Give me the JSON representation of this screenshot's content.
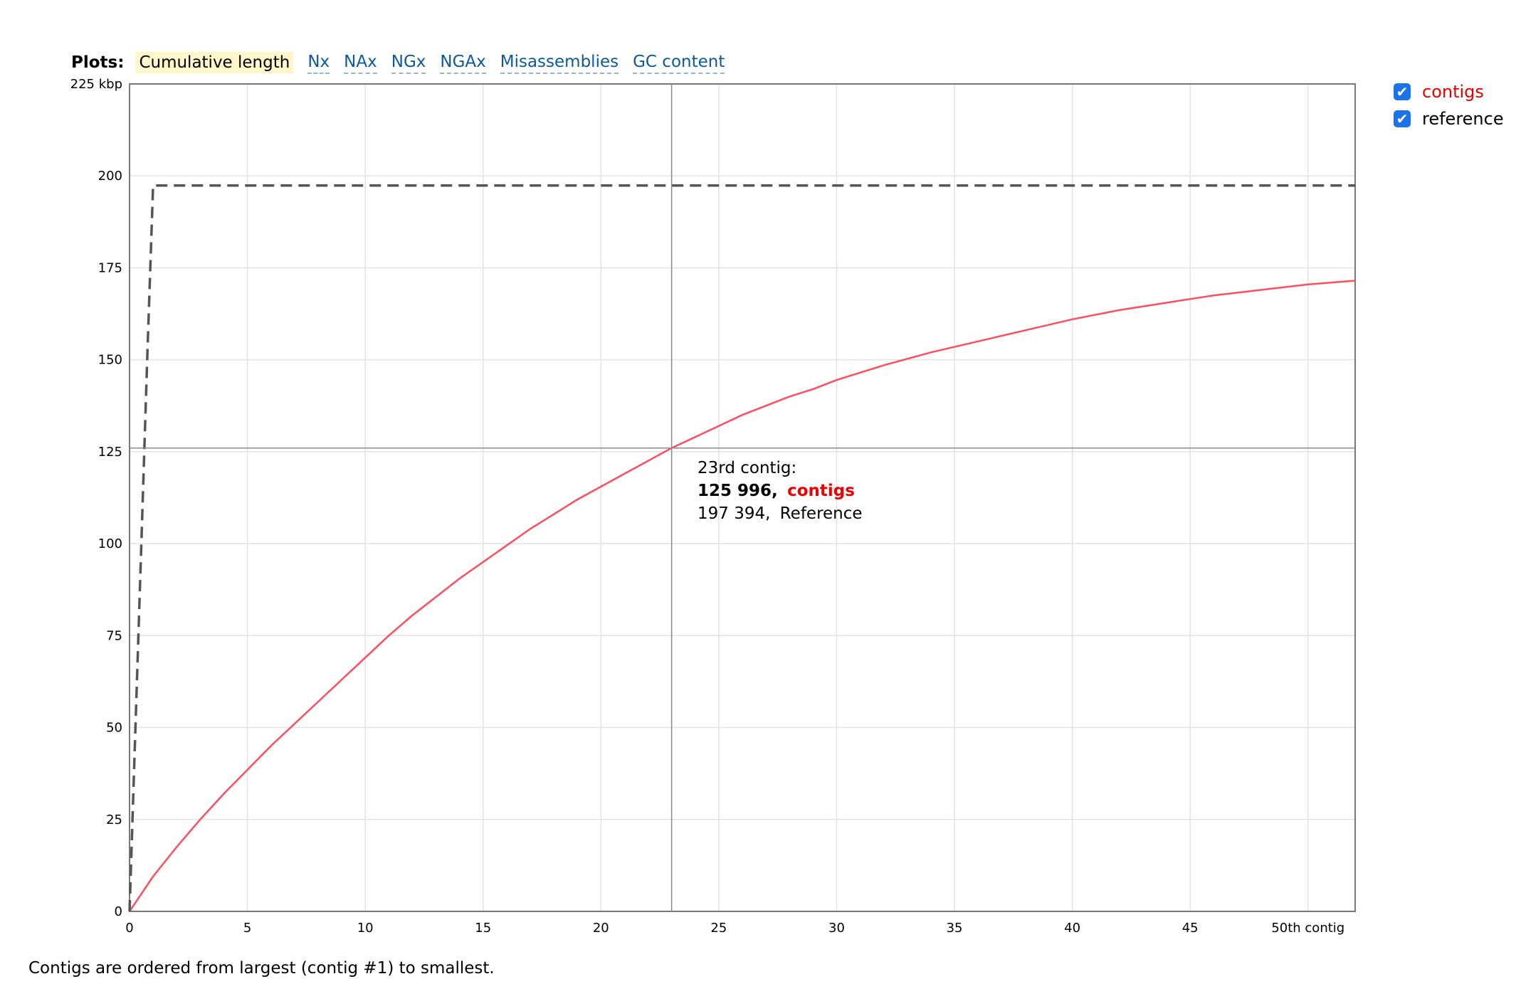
{
  "tabs": {
    "label": "Plots:",
    "items": [
      "Cumulative length",
      "Nx",
      "NAx",
      "NGx",
      "NGAx",
      "Misassemblies",
      "GC content"
    ],
    "active": "Cumulative length"
  },
  "legend": [
    {
      "name": "contigs",
      "color": "#ee0000",
      "checked": true
    },
    {
      "name": "reference",
      "color": "#000000",
      "checked": true
    }
  ],
  "footnote": "Contigs are ordered from largest (contig #1) to smallest.",
  "tooltip": {
    "title": "23rd contig:",
    "contigs_value": "125 996,",
    "contigs_label": "contigs",
    "reference_value": "197 394,",
    "reference_label": "Reference"
  },
  "chart_data": {
    "type": "line",
    "xlim": [
      0,
      52
    ],
    "ylim": [
      0,
      225
    ],
    "x_ticks": [
      0,
      5,
      10,
      15,
      20,
      25,
      30,
      35,
      40,
      45,
      50
    ],
    "x_tick_labels": [
      "0",
      "5",
      "10",
      "15",
      "20",
      "25",
      "30",
      "35",
      "40",
      "45",
      "50th contig"
    ],
    "y_ticks": [
      0,
      25,
      50,
      75,
      100,
      125,
      150,
      175,
      200,
      225
    ],
    "y_tick_labels": [
      "0",
      "25",
      "50",
      "75",
      "100",
      "125",
      "150",
      "175",
      "200",
      "225 kbp"
    ],
    "grid": true,
    "crosshair": {
      "x": 23,
      "y": 126
    },
    "series": [
      {
        "name": "contigs",
        "color": "#ff4d5e",
        "dash": false,
        "x": [
          0,
          1,
          2,
          3,
          4,
          5,
          6,
          7,
          8,
          9,
          10,
          11,
          12,
          13,
          14,
          15,
          16,
          17,
          18,
          19,
          20,
          21,
          22,
          23,
          24,
          25,
          26,
          27,
          28,
          29,
          30,
          32,
          34,
          36,
          38,
          40,
          42,
          44,
          46,
          48,
          50,
          52
        ],
        "y": [
          0,
          9.5,
          17.5,
          25,
          32,
          38.5,
          45,
          51,
          57,
          63,
          69,
          75,
          80.5,
          85.5,
          90.5,
          95,
          99.5,
          104,
          108,
          112,
          115.5,
          119,
          122.5,
          126,
          129,
          132,
          135,
          137.5,
          140,
          142,
          144.5,
          148.5,
          152,
          155,
          158,
          161,
          163.5,
          165.5,
          167.5,
          169,
          170.5,
          171.5
        ]
      },
      {
        "name": "reference",
        "color": "#555555",
        "dash": true,
        "x": [
          0,
          0.25,
          0.5,
          0.75,
          1,
          52
        ],
        "y": [
          0,
          50,
          100,
          150,
          197.4,
          197.4
        ]
      }
    ]
  }
}
